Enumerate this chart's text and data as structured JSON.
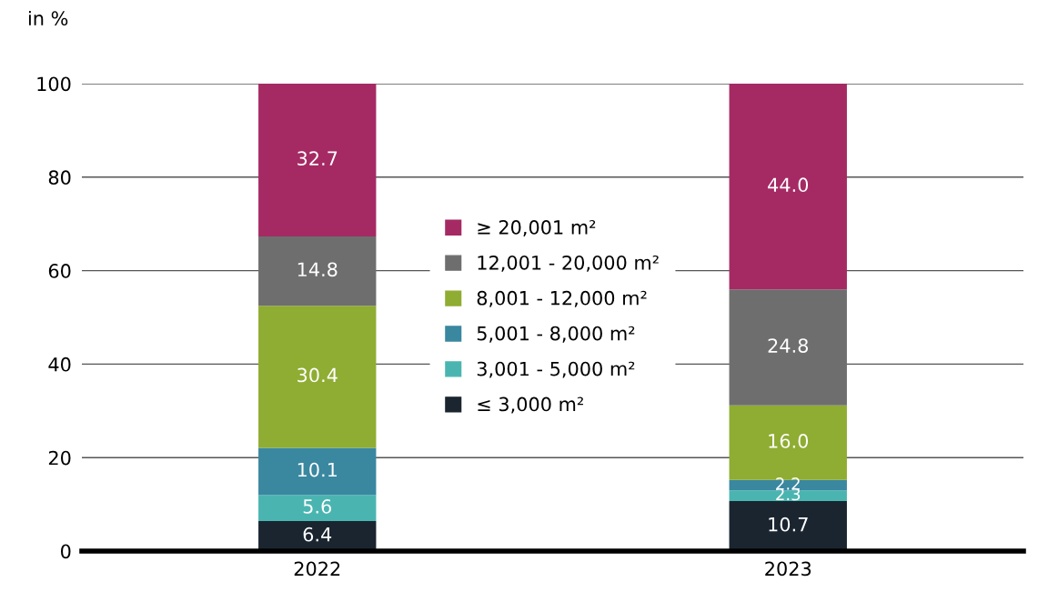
{
  "chart_data": {
    "type": "bar",
    "stacked": true,
    "ylabel": "in %",
    "categories": [
      "2022",
      "2023"
    ],
    "series": [
      {
        "name": "≤ 3,000 m²",
        "color": "#1a2530",
        "values": [
          6.4,
          10.7
        ],
        "value_labels": [
          "6.4",
          "10.7"
        ]
      },
      {
        "name": "3,001 - 5,000 m²",
        "color": "#4ab5b0",
        "values": [
          5.6,
          2.3
        ],
        "value_labels": [
          "5.6",
          "2.3"
        ]
      },
      {
        "name": "5,001 - 8,000 m²",
        "color": "#3a87a0",
        "values": [
          10.1,
          2.2
        ],
        "value_labels": [
          "10.1",
          "2.2"
        ]
      },
      {
        "name": "8,001 - 12,000 m²",
        "color": "#8fad32",
        "values": [
          30.4,
          16.0
        ],
        "value_labels": [
          "30.4",
          "16.0"
        ]
      },
      {
        "name": "12,001 - 20,000 m²",
        "color": "#6e6e6e",
        "values": [
          14.8,
          24.8
        ],
        "value_labels": [
          "14.8",
          "24.8"
        ]
      },
      {
        "name": "≥ 20,001 m²",
        "color": "#a52a64",
        "values": [
          32.7,
          44.0
        ],
        "value_labels": [
          "32.7",
          "44.0"
        ]
      }
    ],
    "ylim": [
      0,
      100
    ],
    "yticks": [
      0,
      20,
      40,
      60,
      80,
      100
    ],
    "grid": "y",
    "legend": "center"
  }
}
